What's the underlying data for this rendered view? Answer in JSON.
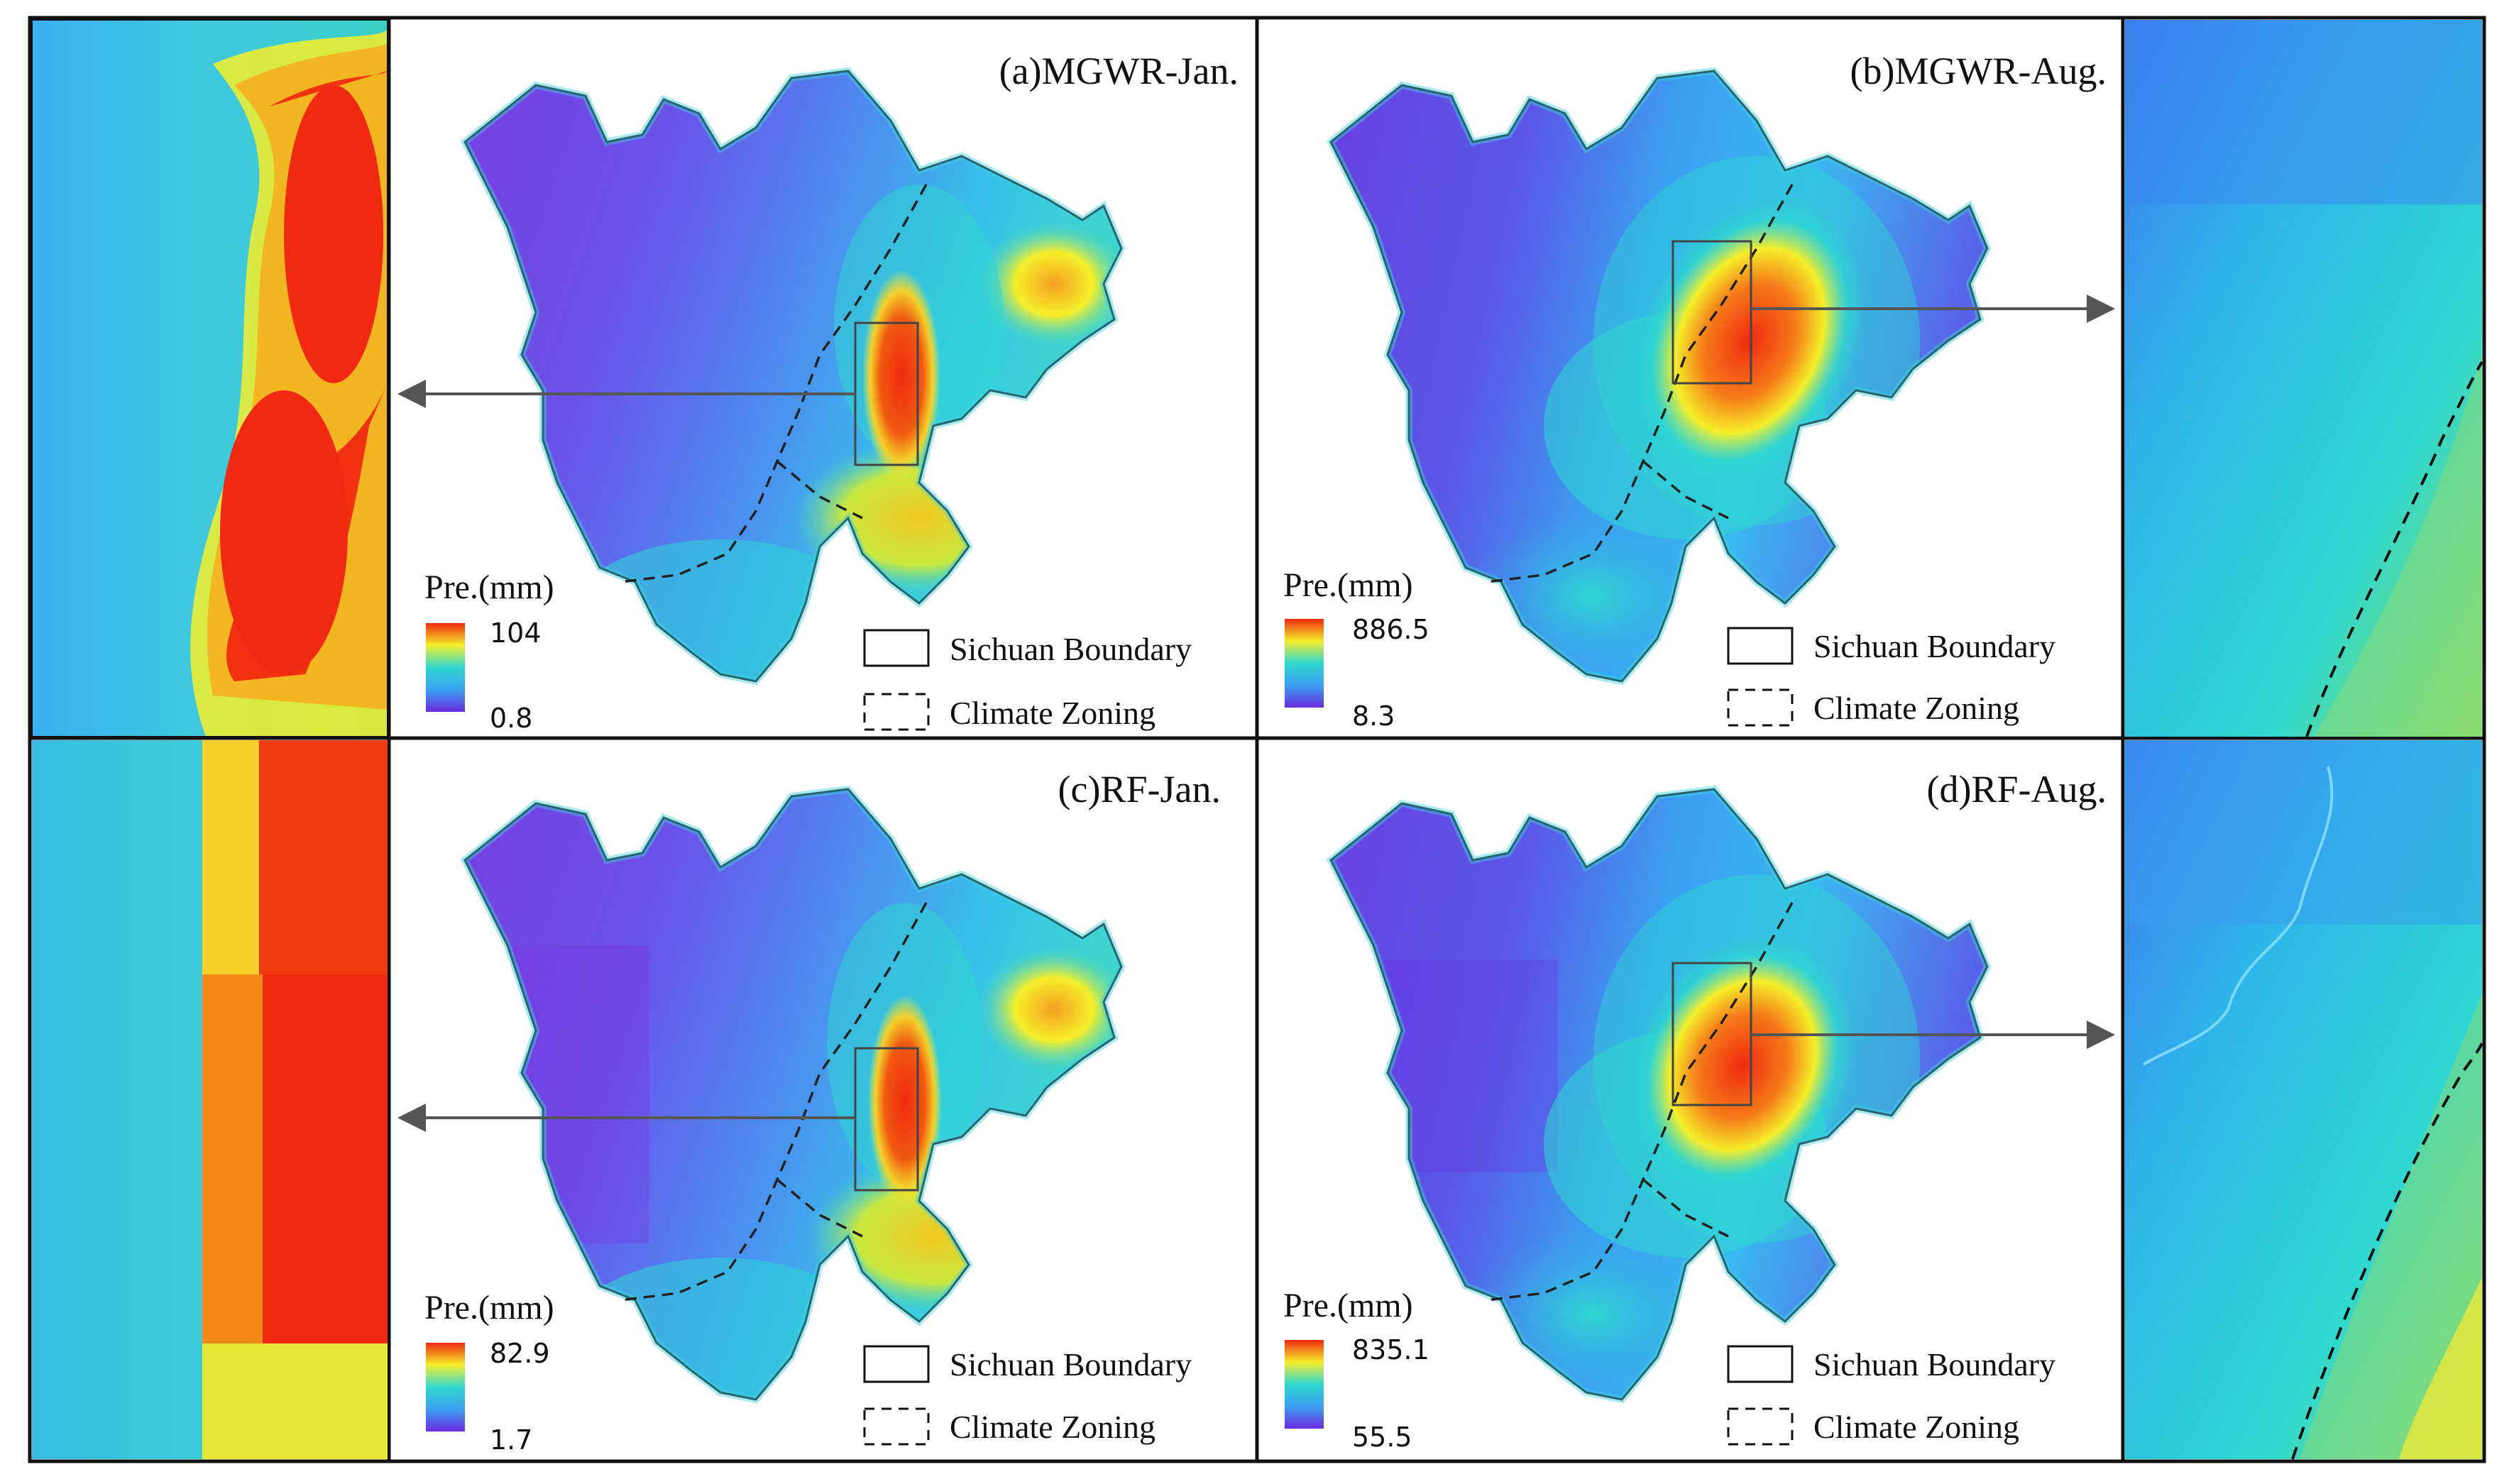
{
  "panels": [
    {
      "id": "a",
      "title": "(a)MGWR-Jan.",
      "legend": {
        "title": "Pre.(mm)",
        "max": "104",
        "min": "0.8"
      },
      "inset_side": "left"
    },
    {
      "id": "b",
      "title": "(b)MGWR-Aug.",
      "legend": {
        "title": "Pre.(mm)",
        "max": "886.5",
        "min": "8.3"
      },
      "inset_side": "right"
    },
    {
      "id": "c",
      "title": "(c)RF-Jan.",
      "legend": {
        "title": "Pre.(mm)",
        "max": "82.9",
        "min": "1.7"
      },
      "inset_side": "left"
    },
    {
      "id": "d",
      "title": "(d)RF-Aug.",
      "legend": {
        "title": "Pre.(mm)",
        "max": "835.1",
        "min": "55.5"
      },
      "inset_side": "right"
    }
  ],
  "key": {
    "boundary_label": "Sichuan Boundary",
    "zoning_label": "Climate Zoning"
  },
  "colors": {
    "low": "#6a2be0",
    "mid_low": "#3aa0f0",
    "mid": "#2fd8d0",
    "mid_high": "#f5ef2a",
    "high": "#f02a10",
    "boundary": "#111111",
    "arrow": "#555555"
  }
}
